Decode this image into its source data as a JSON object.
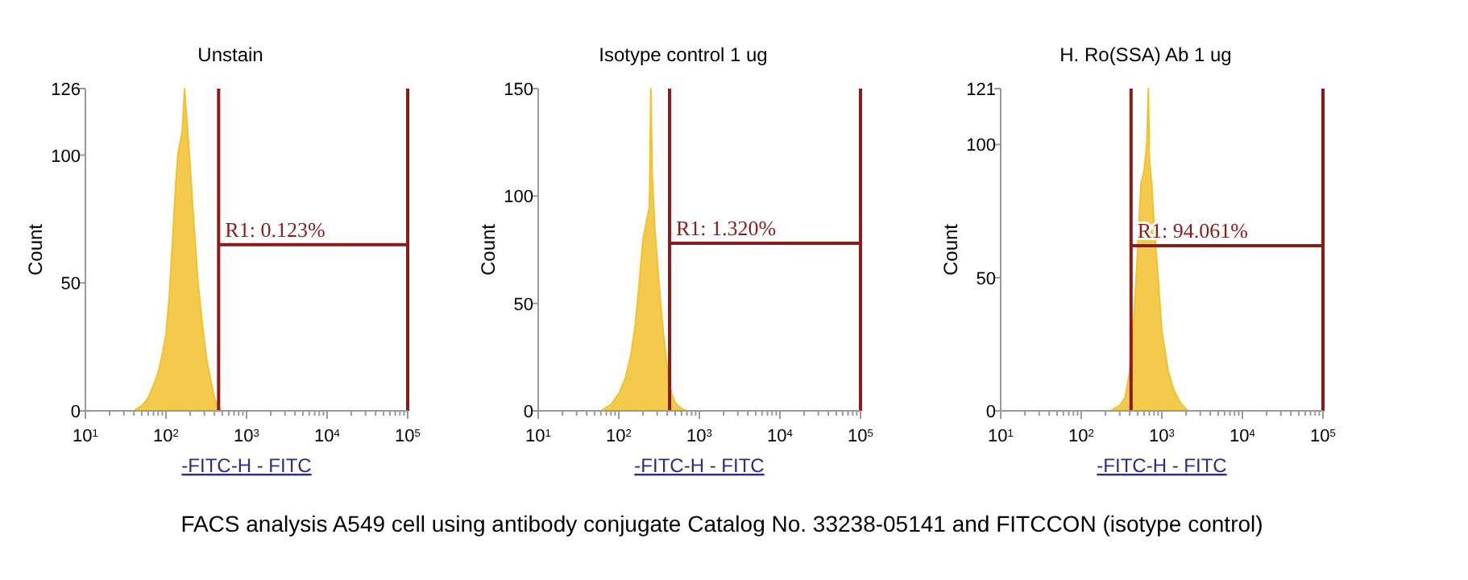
{
  "chart_data": [
    {
      "type": "area",
      "title": "Unstain",
      "xlabel": "-FITC-H - FITC",
      "ylabel": "Count",
      "log": "x",
      "xlim": [
        10,
        100000
      ],
      "ylim": [
        0,
        126
      ],
      "xticks": [
        {
          "value": 10,
          "label": "10$^{1}$"
        },
        {
          "value": 100,
          "label": "10$^{2}$"
        },
        {
          "value": 1000,
          "label": "10$^{3}$"
        },
        {
          "value": 10000,
          "label": "10$^{4}$"
        },
        {
          "value": 100000,
          "label": "10$^{5}$"
        }
      ],
      "yticks": [
        0,
        50,
        100,
        126
      ],
      "series": [
        {
          "color": "#f2c12e",
          "x": [
            40,
            50,
            60,
            70,
            80,
            90,
            100,
            110,
            120,
            130,
            140,
            150,
            160,
            170,
            180,
            190,
            200,
            220,
            250,
            280,
            320,
            360,
            400,
            450,
            500
          ],
          "values": [
            0,
            2,
            5,
            10,
            15,
            22,
            30,
            45,
            65,
            85,
            100,
            105,
            110,
            126,
            115,
            105,
            95,
            75,
            50,
            35,
            20,
            12,
            5,
            1,
            0
          ]
        }
      ],
      "ref_lines": [
        {
          "axis": "x",
          "value": 450,
          "color": "#8b1a1a"
        },
        {
          "axis": "x",
          "value": 100000,
          "color": "#8b1a1a"
        }
      ],
      "annotations": [
        {
          "text": "R1: 0.123%",
          "x": 450,
          "y": 65
        },
        "FACS analysis A549 cell using antibody conjugate Catalog No. 33238-05141 and FITCCON (isotype control)"
      ]
    },
    {
      "type": "area",
      "title": "Isotype control 1 ug",
      "xlabel": "-FITC-H - FITC",
      "ylabel": "Count",
      "log": "x",
      "xlim": [
        10,
        100000
      ],
      "ylim": [
        0,
        150
      ],
      "xticks": [
        {
          "value": 10,
          "label": "10$^{1}$"
        },
        {
          "value": 100,
          "label": "10$^{2}$"
        },
        {
          "value": 1000,
          "label": "10$^{3}$"
        },
        {
          "value": 10000,
          "label": "10$^{4}$"
        },
        {
          "value": 100000,
          "label": "10$^{5}$"
        }
      ],
      "yticks": [
        0,
        50,
        100,
        150
      ],
      "series": [
        {
          "color": "#f2c12e",
          "x": [
            60,
            80,
            100,
            120,
            140,
            160,
            180,
            200,
            220,
            240,
            250,
            260,
            280,
            300,
            330,
            360,
            400,
            450,
            500,
            600,
            700
          ],
          "values": [
            0,
            3,
            8,
            15,
            25,
            40,
            60,
            80,
            88,
            95,
            150,
            110,
            85,
            70,
            50,
            35,
            20,
            8,
            4,
            1,
            0
          ]
        }
      ],
      "ref_lines": [
        {
          "axis": "x",
          "value": 427,
          "color": "#8b1a1a"
        },
        {
          "axis": "x",
          "value": 100000,
          "color": "#8b1a1a"
        }
      ],
      "annotations": [
        {
          "text": "R1: 1.320%",
          "x": 427,
          "y": 78
        }
      ]
    },
    {
      "type": "area",
      "title": "H. Ro(SSA) Ab 1 ug",
      "xlabel": "-FITC-H - FITC",
      "ylabel": "Count",
      "log": "x",
      "xlim": [
        10,
        100000
      ],
      "ylim": [
        0,
        121
      ],
      "xticks": [
        {
          "value": 10,
          "label": "10$^{1}$"
        },
        {
          "value": 100,
          "label": "10$^{2}$"
        },
        {
          "value": 1000,
          "label": "10$^{3}$"
        },
        {
          "value": 10000,
          "label": "10$^{4}$"
        },
        {
          "value": 100000,
          "label": "10$^{5}$"
        }
      ],
      "yticks": [
        0,
        50,
        100,
        121
      ],
      "series": [
        {
          "color": "#f2c12e",
          "x": [
            230,
            300,
            350,
            400,
            450,
            500,
            550,
            600,
            650,
            680,
            700,
            750,
            800,
            900,
            1000,
            1200,
            1400,
            1700,
            2100
          ],
          "values": [
            0,
            2,
            5,
            15,
            35,
            60,
            85,
            90,
            100,
            121,
            95,
            85,
            70,
            50,
            30,
            15,
            8,
            3,
            0
          ]
        }
      ],
      "ref_lines": [
        {
          "axis": "x",
          "value": 415,
          "color": "#8b1a1a"
        },
        {
          "axis": "x",
          "value": 100000,
          "color": "#8b1a1a"
        }
      ],
      "annotations": [
        {
          "text": "R1: 94.061%",
          "x": 415,
          "y": 62
        }
      ]
    }
  ]
}
